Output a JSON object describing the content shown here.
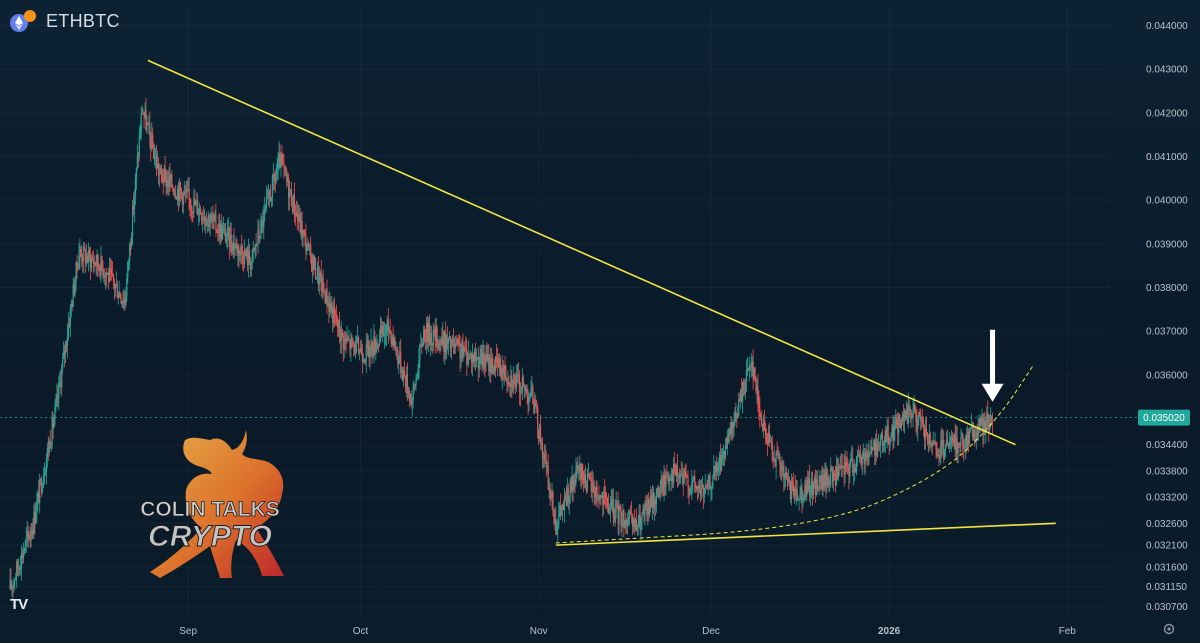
{
  "header": {
    "symbol": "ETHBTC"
  },
  "branding": {
    "tv_logo": "TV",
    "watermark_line1": "COLIN TALKS",
    "watermark_line2": "CRYPTO"
  },
  "colors": {
    "up": "#26a69a",
    "down": "#ef5350",
    "trendline": "#f2e543",
    "price_label": "#1fa89b"
  },
  "icons": {
    "settings": "gear-icon",
    "arrow": "arrow-down-icon",
    "eth": "eth-icon",
    "btc": "btc-icon"
  },
  "chart_data": {
    "type": "candlestick",
    "title": "ETHBTC",
    "current_price": "0.035020",
    "ylim": [
      0.0305,
      0.0444
    ],
    "y_ticks": [
      "0.044000",
      "0.043000",
      "0.042000",
      "0.041000",
      "0.040000",
      "0.039000",
      "0.038000",
      "0.037000",
      "0.036000",
      "0.034400",
      "0.033800",
      "0.033200",
      "0.032600",
      "0.032100",
      "0.031600",
      "0.031150",
      "0.030700"
    ],
    "x_ticks": [
      "Sep",
      "Oct",
      "Nov",
      "Dec",
      "2026",
      "Feb"
    ],
    "period": [
      "2025-08-01",
      "2026-01-29"
    ],
    "waypoints": [
      {
        "date": "2025-08-01",
        "close": 0.0311
      },
      {
        "date": "2025-08-05",
        "close": 0.0326
      },
      {
        "date": "2025-08-09",
        "close": 0.0352
      },
      {
        "date": "2025-08-13",
        "close": 0.0388
      },
      {
        "date": "2025-08-17",
        "close": 0.0385
      },
      {
        "date": "2025-08-21",
        "close": 0.0377
      },
      {
        "date": "2025-08-24",
        "close": 0.0421
      },
      {
        "date": "2025-08-27",
        "close": 0.0406
      },
      {
        "date": "2025-09-03",
        "close": 0.0398
      },
      {
        "date": "2025-09-12",
        "close": 0.0386
      },
      {
        "date": "2025-09-17",
        "close": 0.0409
      },
      {
        "date": "2025-09-22",
        "close": 0.0388
      },
      {
        "date": "2025-09-28",
        "close": 0.0368
      },
      {
        "date": "2025-10-02",
        "close": 0.0365
      },
      {
        "date": "2025-10-06",
        "close": 0.0371
      },
      {
        "date": "2025-10-10",
        "close": 0.0354
      },
      {
        "date": "2025-10-12",
        "close": 0.037
      },
      {
        "date": "2025-10-19",
        "close": 0.0365
      },
      {
        "date": "2025-10-25",
        "close": 0.0362
      },
      {
        "date": "2025-10-31",
        "close": 0.0355
      },
      {
        "date": "2025-11-04",
        "close": 0.0326
      },
      {
        "date": "2025-11-08",
        "close": 0.0338
      },
      {
        "date": "2025-11-13",
        "close": 0.033
      },
      {
        "date": "2025-11-18",
        "close": 0.0325
      },
      {
        "date": "2025-11-24",
        "close": 0.0338
      },
      {
        "date": "2025-11-30",
        "close": 0.0333
      },
      {
        "date": "2025-12-04",
        "close": 0.0344
      },
      {
        "date": "2025-12-08",
        "close": 0.0364
      },
      {
        "date": "2025-12-10",
        "close": 0.0348
      },
      {
        "date": "2025-12-15",
        "close": 0.0333
      },
      {
        "date": "2025-12-18",
        "close": 0.0334
      },
      {
        "date": "2025-12-24",
        "close": 0.0338
      },
      {
        "date": "2025-12-31",
        "close": 0.0345
      },
      {
        "date": "2026-01-05",
        "close": 0.0352
      },
      {
        "date": "2026-01-09",
        "close": 0.0342
      },
      {
        "date": "2026-01-14",
        "close": 0.0345
      },
      {
        "date": "2026-01-19",
        "close": 0.03502
      }
    ],
    "trendlines": [
      {
        "name": "descending-resistance",
        "from": {
          "date": "2025-08-25",
          "price": 0.0432
        },
        "to": {
          "date": "2026-01-23",
          "price": 0.0344
        }
      },
      {
        "name": "ascending-support",
        "from": {
          "date": "2025-11-04",
          "price": 0.0321
        },
        "to": {
          "date": "2026-01-30",
          "price": 0.0326
        }
      }
    ],
    "curve": {
      "name": "parabolic-support",
      "style": "dashed",
      "points": [
        {
          "date": "2025-11-04",
          "price": 0.03215
        },
        {
          "date": "2025-12-20",
          "price": 0.0325
        },
        {
          "date": "2026-01-10",
          "price": 0.0337
        },
        {
          "date": "2026-01-20",
          "price": 0.035
        },
        {
          "date": "2026-01-26",
          "price": 0.0362
        }
      ]
    },
    "annotation": {
      "type": "arrow",
      "pointing": "down",
      "date": "2026-01-19",
      "price": 0.0352
    }
  }
}
